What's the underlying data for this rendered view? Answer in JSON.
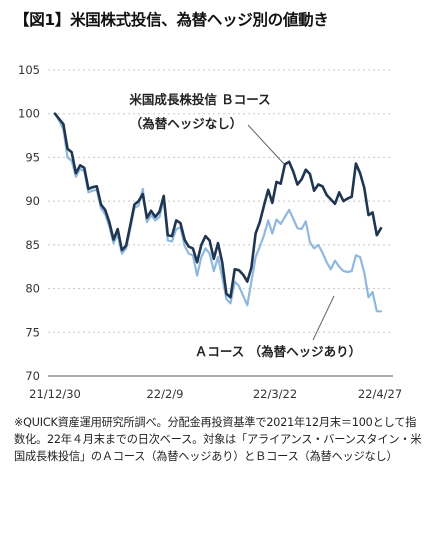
{
  "title": "【図1】米国株式投信、為替ヘッジ別の値動き",
  "note": "※QUICK資産運用研究所調べ。分配金再投資基準で2021年12月末＝100として指数化。22年４月末までの日次ベース。対象は「アライアンス・バーンスタイン・米国成長株投信」のＡコース（為替ヘッジあり）とＢコース（為替ヘッジなし）",
  "colors": {
    "series_b": "#1f3550",
    "series_a": "#8fb8de",
    "grid": "#c8c8c8",
    "axis": "#555555"
  },
  "chart_data": {
    "type": "line",
    "ylim": [
      70,
      105
    ],
    "yticks": [
      70,
      75,
      80,
      85,
      90,
      95,
      100,
      105
    ],
    "grid": true,
    "xtick_labels": [
      "21/12/30",
      "22/2/9",
      "22/3/22",
      "22/4/27"
    ],
    "annotations": [
      {
        "series": "B",
        "lines": [
          "米国成長株投信 Ｂコース",
          "（為替ヘッジなし）"
        ]
      },
      {
        "series": "A",
        "lines": [
          "Ａコース （為替ヘッジあり）"
        ]
      }
    ],
    "series": [
      {
        "id": "B",
        "values": [
          100.0,
          99.4,
          98.8,
          96.0,
          95.6,
          93.2,
          94.1,
          93.8,
          91.4,
          91.6,
          91.7,
          89.6,
          89.0,
          87.6,
          85.6,
          86.8,
          84.4,
          84.9,
          87.2,
          89.6,
          90.0,
          90.8,
          88.1,
          88.9,
          88.2,
          88.8,
          90.6,
          86.1,
          86.0,
          87.8,
          87.5,
          85.6,
          84.8,
          84.6,
          83.0,
          85.0,
          86.0,
          85.5,
          83.4,
          85.2,
          83.0,
          79.4,
          79.0,
          82.2,
          82.1,
          81.6,
          80.8,
          82.4,
          86.3,
          87.6,
          89.5,
          91.3,
          89.8,
          92.2,
          92.0,
          94.2,
          94.5,
          93.4,
          91.9,
          92.5,
          93.6,
          93.1,
          91.2,
          91.9,
          91.7,
          90.7,
          90.2,
          89.7,
          91.0,
          90.0,
          90.3,
          90.5,
          94.3,
          93.2,
          91.5,
          88.4,
          88.7,
          86.1,
          86.9
        ]
      },
      {
        "id": "A",
        "values": [
          100.0,
          99.2,
          98.2,
          95.0,
          94.6,
          92.8,
          93.7,
          93.4,
          91.0,
          91.2,
          91.3,
          89.2,
          88.5,
          87.1,
          85.2,
          86.2,
          84.0,
          84.6,
          86.8,
          89.2,
          89.5,
          91.4,
          87.6,
          88.4,
          87.8,
          88.2,
          90.2,
          85.5,
          85.4,
          86.8,
          87.0,
          84.9,
          84.0,
          83.8,
          81.5,
          83.6,
          84.6,
          84.0,
          82.0,
          83.6,
          81.3,
          78.8,
          78.3,
          80.8,
          80.3,
          79.2,
          78.1,
          80.8,
          83.6,
          84.8,
          86.1,
          87.8,
          86.3,
          87.9,
          87.4,
          88.2,
          89.0,
          88.0,
          86.9,
          86.8,
          87.7,
          85.3,
          84.6,
          85.0,
          84.1,
          83.0,
          82.2,
          83.2,
          82.5,
          82.0,
          81.9,
          82.0,
          83.8,
          83.6,
          81.8,
          79.0,
          79.6,
          77.4,
          77.4
        ]
      }
    ]
  }
}
